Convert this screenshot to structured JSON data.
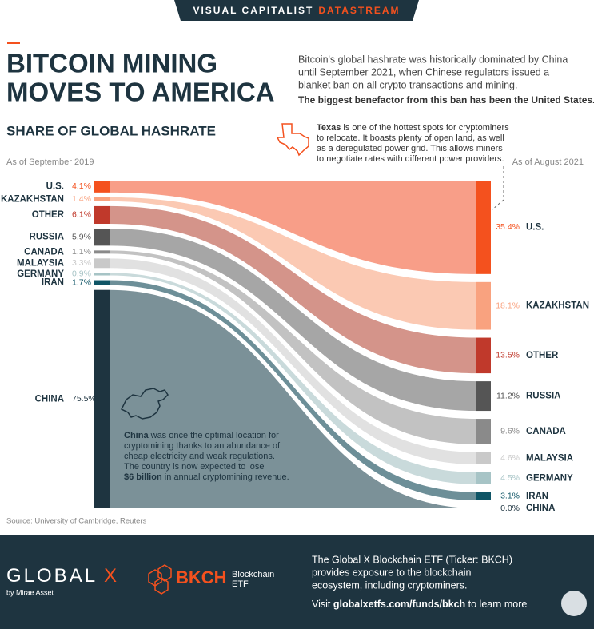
{
  "header": {
    "brand": "VISUAL CAPITALIST",
    "product": "DATASTREAM"
  },
  "chart_data": {
    "type": "flow",
    "title": [
      "BITCOIN MINING",
      "MOVES TO AMERICA"
    ],
    "intro": [
      "Bitcoin's global hashrate was historically dominated by China",
      "until September 2021, when Chinese regulators issued a",
      "blanket ban on all crypto transactions and mining."
    ],
    "highlight": "The biggest benefactor from this ban has been the United States.",
    "subtitle": "SHARE OF GLOBAL HASHRATE",
    "categories": [
      "U.S.",
      "KAZAKHSTAN",
      "OTHER",
      "RUSSIA",
      "CANADA",
      "MALAYSIA",
      "GERMANY",
      "IRAN",
      "CHINA"
    ],
    "colors": [
      "#f4511e",
      "#f9a27f",
      "#c0392b",
      "#555555",
      "#8a8a8a",
      "#c9c9c9",
      "#a7c4c6",
      "#0f5566",
      "#1e3440"
    ],
    "flow_colors": [
      "#f89e88",
      "#fbc9b3",
      "#d4948a",
      "#a6a6a6",
      "#c2c2c2",
      "#e1e1e1",
      "#c9dadb",
      "#6d8f98",
      "#7b9198"
    ],
    "series": [
      {
        "name": "As of September 2019",
        "values": [
          4.1,
          1.4,
          6.1,
          5.9,
          1.1,
          3.3,
          0.9,
          1.7,
          75.5
        ],
        "value_labels": [
          "4.1%",
          "1.4%",
          "6.1%",
          "5.9%",
          "1.1%",
          "3.3%",
          "0.9%",
          "1.7%",
          "75.5%"
        ]
      },
      {
        "name": "As of August 2021",
        "values": [
          35.4,
          18.1,
          13.5,
          11.2,
          9.6,
          4.6,
          4.5,
          3.1,
          0.0
        ],
        "value_labels": [
          "35.4%",
          "18.1%",
          "13.5%",
          "11.2%",
          "9.6%",
          "4.6%",
          "4.5%",
          "3.1%",
          "0.0%"
        ]
      }
    ],
    "texas_note": {
      "bold": "Texas",
      "lines": [
        " is one of the hottest spots for cryptominers",
        "to relocate. It boasts plenty of open land, as well",
        "as a deregulated power grid. This allows miners",
        "to negotiate rates with different power providers."
      ]
    },
    "china_note": {
      "bold": "China",
      "lines": [
        " was once the optimal location for",
        "cryptomining thanks to an abundance of",
        "cheap electricity and weak regulations.",
        "The country is now expected to lose"
      ],
      "bold_end": "$6 billion",
      "end": " in annual cryptomining revenue."
    },
    "source": "Source: University of Cambridge, Reuters"
  },
  "footer": {
    "logo": [
      "GLOBAL",
      "X"
    ],
    "logo_sub": "by Mirae Asset",
    "ticker": "BKCH",
    "ticker_name": [
      "Blockchain",
      "ETF"
    ],
    "description": [
      "The Global X Blockchain ETF (Ticker: BKCH)",
      "provides exposure to the blockchain",
      "ecosystem, including cryptominers."
    ],
    "visit": [
      "Visit ",
      "globalxetfs.com/funds/bkch",
      " to learn more"
    ]
  }
}
